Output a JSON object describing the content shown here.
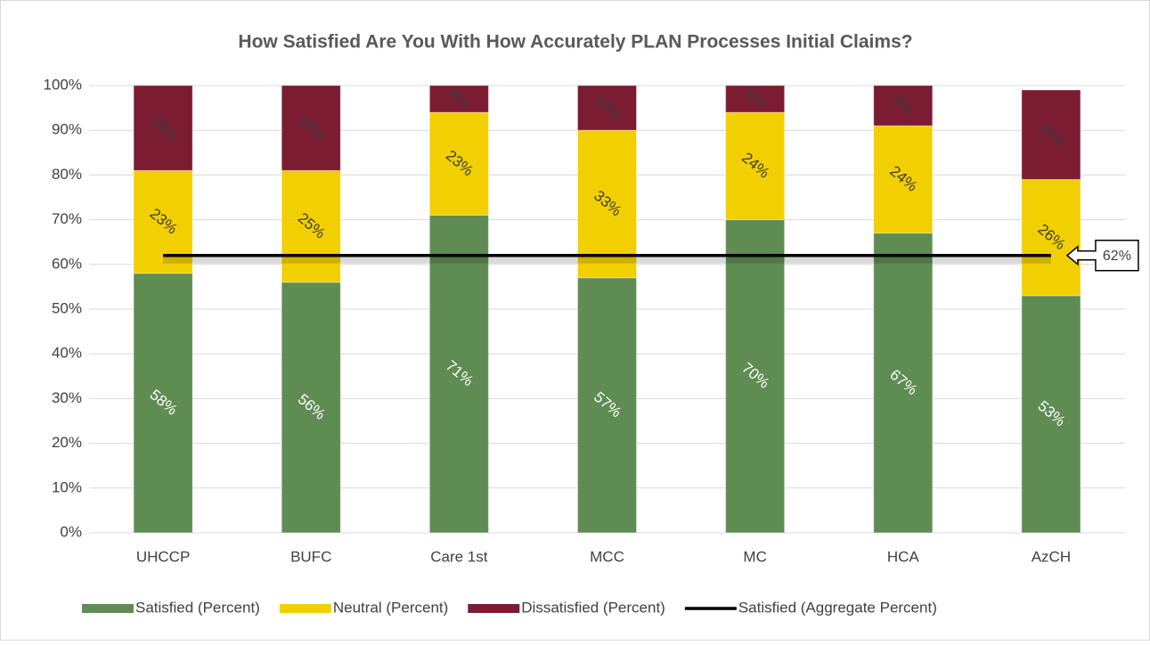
{
  "chart_data": {
    "type": "stacked_bar",
    "title": "How Satisfied Are You With How Accurately PLAN Processes Initial Claims?",
    "categories": [
      "UHCCP",
      "BUFC",
      "Care 1st",
      "MCC",
      "MC",
      "HCA",
      "AzCH"
    ],
    "series": [
      {
        "name": "Satisfied (Percent)",
        "color": "#5e8c52",
        "values": [
          58,
          56,
          71,
          57,
          70,
          67,
          53
        ],
        "value_labels": [
          "58%",
          "56%",
          "71%",
          "57%",
          "70%",
          "67%",
          "53%"
        ]
      },
      {
        "name": "Neutral (Percent)",
        "color": "#f2cf00",
        "values": [
          23,
          25,
          23,
          33,
          24,
          24,
          26
        ],
        "value_labels": [
          "23%",
          "25%",
          "23%",
          "33%",
          "24%",
          "24%",
          "26%"
        ]
      },
      {
        "name": "Dissatisfied (Percent)",
        "color": "#7b1c33",
        "values": [
          19,
          19,
          6,
          10,
          6,
          9,
          20
        ],
        "value_labels": [
          "19%",
          "19%",
          "6%",
          "10%",
          "6%",
          "9%",
          "20%"
        ]
      },
      {
        "name": "Satisfied (Aggregate Percent)",
        "type": "line",
        "color": "#000000",
        "values": [
          62,
          62,
          62,
          62,
          62,
          62,
          62
        ],
        "value_labels": [
          null,
          null,
          null,
          null,
          null,
          null,
          "62%"
        ]
      }
    ],
    "ylim": [
      0,
      100
    ],
    "yticks": [
      {
        "value": 0,
        "label": "0%"
      },
      {
        "value": 10,
        "label": "10%"
      },
      {
        "value": 20,
        "label": "20%"
      },
      {
        "value": 30,
        "label": "30%"
      },
      {
        "value": 40,
        "label": "40%"
      },
      {
        "value": 50,
        "label": "50%"
      },
      {
        "value": 60,
        "label": "60%"
      },
      {
        "value": 70,
        "label": "70%"
      },
      {
        "value": 80,
        "label": "80%"
      },
      {
        "value": 90,
        "label": "90%"
      },
      {
        "value": 100,
        "label": "100%"
      }
    ],
    "grid": true,
    "legend": "bottom"
  }
}
